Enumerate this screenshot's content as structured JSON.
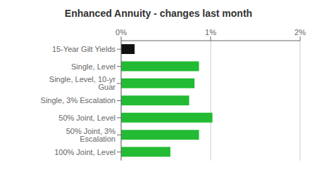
{
  "chart_data": {
    "type": "bar",
    "orientation": "horizontal",
    "title": "Enhanced Annuity - changes last month",
    "categories": [
      "100% Joint, Level",
      "50% Joint, 3% Escalation",
      "50% Joint, Level",
      "Single, 3% Escalation",
      "Single, Level, 10-yr Guar",
      "Single, Level",
      "15-Year Gilt Yields"
    ],
    "values": [
      0.55,
      0.87,
      1.02,
      0.76,
      0.82,
      0.87,
      0.15
    ],
    "colors": [
      "#22bb33",
      "#22bb33",
      "#22bb33",
      "#22bb33",
      "#22bb33",
      "#22bb33",
      "#111111"
    ],
    "xlim": [
      0,
      2.0
    ],
    "xticks": [
      {
        "value": 0,
        "label": "0%"
      },
      {
        "value": 1,
        "label": "1%"
      },
      {
        "value": 2,
        "label": "2%"
      }
    ],
    "grid": true
  }
}
